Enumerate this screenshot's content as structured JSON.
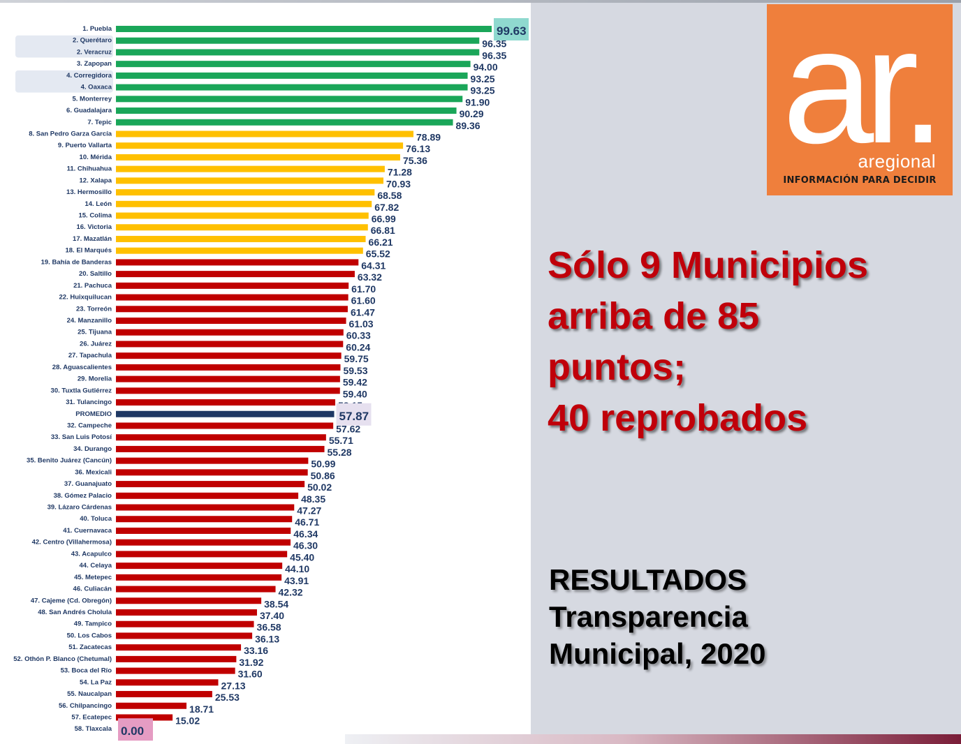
{
  "headline": {
    "line1": "Sólo 9 Municipios",
    "line2": "arriba de 85",
    "line3": "puntos;",
    "line4": "40 reprobados"
  },
  "results_title": {
    "line1": "RESULTADOS",
    "line2": "Transparencia",
    "line3": "Municipal, 2020"
  },
  "logo": {
    "mark": "ar.",
    "name": "aregional",
    "tagline": "INFORMACIÓN PARA DECIDIR"
  },
  "colors": {
    "green": "#1aa659",
    "yellow": "#ffc000",
    "red": "#c00000",
    "navy": "#1f3864",
    "label": "#1f3864",
    "logo_orange": "#ef7f3c",
    "headline_red": "#c0000a",
    "highlight_top": "#8fd9cf",
    "highlight_avg": "#e6e0ef",
    "highlight_zero": "#e59cc3",
    "row_band": "#e4e9f2"
  },
  "chart_data": {
    "type": "bar",
    "orientation": "horizontal",
    "xlim": [
      0,
      100
    ],
    "grid": false,
    "legend": "none",
    "categories": [
      "1. Puebla",
      "2. Querétaro",
      "2. Veracruz",
      "3. Zapopan",
      "4. Corregidora",
      "4. Oaxaca",
      "5. Monterrey",
      "6. Guadalajara",
      "7. Tepic",
      "8. San Pedro Garza García",
      "9. Puerto Vallarta",
      "10. Mérida",
      "11. Chihuahua",
      "12. Xalapa",
      "13. Hermosillo",
      "14. León",
      "15. Colima",
      "16. Victoria",
      "17. Mazatlán",
      "18. El Marqués",
      "19. Bahía de Banderas",
      "20. Saltillo",
      "21. Pachuca",
      "22. Huixquilucan",
      "23. Torreón",
      "24. Manzanillo",
      "25. Tijuana",
      "26. Juárez",
      "27. Tapachula",
      "28. Aguascalientes",
      "29. Morelia",
      "30. Tuxtla Gutiérrez",
      "31. Tulancingo",
      "PROMEDIO",
      "32. Campeche",
      "33. San Luis Potosí",
      "34. Durango",
      "35. Benito Juárez (Cancún)",
      "36. Mexicali",
      "37. Guanajuato",
      "38. Gómez Palacio",
      "39. Lázaro Cárdenas",
      "40. Toluca",
      "41. Cuernavaca",
      "42. Centro (Villahermosa)",
      "43. Acapulco",
      "44. Celaya",
      "45. Metepec",
      "46. Culiacán",
      "47. Cajeme (Cd. Obregón)",
      "48. San Andrés Cholula",
      "49. Tampico",
      "50. Los Cabos",
      "51. Zacatecas",
      "52. Othón P. Blanco (Chetumal)",
      "53. Boca del Río",
      "54. La Paz",
      "55. Naucalpan",
      "56. Chilpancingo",
      "57. Ecatepec",
      "58. Tlaxcala"
    ],
    "values": [
      99.63,
      96.35,
      96.35,
      94.0,
      93.25,
      93.25,
      91.9,
      90.29,
      89.36,
      78.89,
      76.13,
      75.36,
      71.28,
      70.93,
      68.58,
      67.82,
      66.99,
      66.81,
      66.21,
      65.52,
      64.31,
      63.32,
      61.7,
      61.6,
      61.47,
      61.03,
      60.33,
      60.24,
      59.75,
      59.53,
      59.42,
      59.4,
      58.15,
      57.87,
      57.62,
      55.71,
      55.28,
      50.99,
      50.86,
      50.02,
      48.35,
      47.27,
      46.71,
      46.34,
      46.3,
      45.4,
      44.1,
      43.91,
      42.32,
      38.54,
      37.4,
      36.58,
      36.13,
      33.16,
      31.92,
      31.6,
      27.13,
      25.53,
      18.71,
      15.02,
      0.0
    ],
    "value_labels": [
      "99.63",
      "96.35",
      "96.35",
      "94.00",
      "93.25",
      "93.25",
      "91.90",
      "90.29",
      "89.36",
      "78.89",
      "76.13",
      "75.36",
      "71.28",
      "70.93",
      "68.58",
      "67.82",
      "66.99",
      "66.81",
      "66.21",
      "65.52",
      "64.31",
      "63.32",
      "61.70",
      "61.60",
      "61.47",
      "61.03",
      "60.33",
      "60.24",
      "59.75",
      "59.53",
      "59.42",
      "59.40",
      "58.15",
      "57.87",
      "57.62",
      "55.71",
      "55.28",
      "50.99",
      "50.86",
      "50.02",
      "48.35",
      "47.27",
      "46.71",
      "46.34",
      "46.30",
      "45.40",
      "44.10",
      "43.91",
      "42.32",
      "38.54",
      "37.40",
      "36.58",
      "36.13",
      "33.16",
      "31.92",
      "31.60",
      "27.13",
      "25.53",
      "18.71",
      "15.02",
      "0.00"
    ],
    "color_groups": [
      "green",
      "green",
      "green",
      "green",
      "green",
      "green",
      "green",
      "green",
      "green",
      "yellow",
      "yellow",
      "yellow",
      "yellow",
      "yellow",
      "yellow",
      "yellow",
      "yellow",
      "yellow",
      "yellow",
      "yellow",
      "red",
      "red",
      "red",
      "red",
      "red",
      "red",
      "red",
      "red",
      "red",
      "red",
      "red",
      "red",
      "red",
      "navy",
      "red",
      "red",
      "red",
      "red",
      "red",
      "red",
      "red",
      "red",
      "red",
      "red",
      "red",
      "red",
      "red",
      "red",
      "red",
      "red",
      "red",
      "red",
      "red",
      "red",
      "red",
      "red",
      "red",
      "red",
      "red",
      "red",
      "red"
    ],
    "highlighted_labels": {
      "0": "highlight_top",
      "33": "highlight_avg",
      "60": "highlight_zero"
    },
    "banded_rows": [
      [
        1,
        2
      ],
      [
        4,
        5
      ]
    ]
  }
}
